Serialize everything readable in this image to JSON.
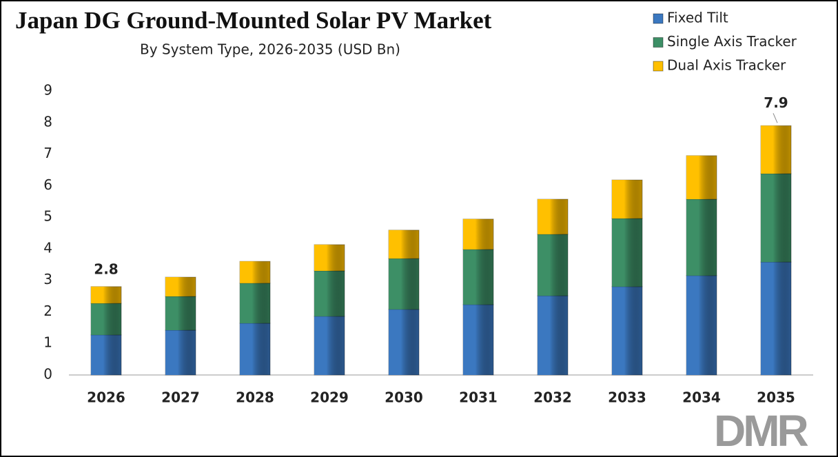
{
  "chart_data": {
    "type": "stacked_bar",
    "title": "Japan DG Ground-Mounted Solar PV Market",
    "subtitle": "By System Type, 2026-2035 (USD Bn)",
    "categories": [
      "2026",
      "2027",
      "2028",
      "2029",
      "2030",
      "2031",
      "2032",
      "2033",
      "2034",
      "2035"
    ],
    "series": [
      {
        "name": "Fixed Tilt",
        "color": "#3b78c0",
        "values": [
          1.27,
          1.42,
          1.64,
          1.86,
          2.08,
          2.23,
          2.51,
          2.8,
          3.15,
          3.58
        ]
      },
      {
        "name": "Single Axis Tracker",
        "color": "#3d8f66",
        "values": [
          1.0,
          1.07,
          1.27,
          1.44,
          1.61,
          1.75,
          1.95,
          2.16,
          2.42,
          2.8
        ]
      },
      {
        "name": "Dual Axis Tracker",
        "color": "#ffc000",
        "values": [
          0.53,
          0.61,
          0.69,
          0.83,
          0.9,
          0.96,
          1.11,
          1.22,
          1.38,
          1.52
        ]
      }
    ],
    "annotations": [
      {
        "text": "2.8",
        "category": 0,
        "value": 2.8
      },
      {
        "text": "7.9",
        "category": 9,
        "value": 7.9
      }
    ],
    "ylim": [
      0,
      9
    ],
    "yticks": [
      0,
      1,
      2,
      3,
      4,
      5,
      6,
      7,
      8,
      9
    ],
    "grid": false,
    "legend": "top-right",
    "logo": "DMR"
  }
}
